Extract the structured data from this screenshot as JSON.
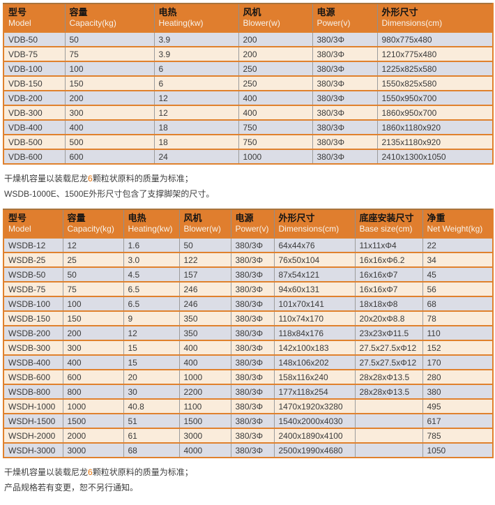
{
  "colors": {
    "header_background": "#e07e2e",
    "header_chinese_text": "#141414",
    "header_english_text": "#f7f3ec",
    "row_gray": "#dbdde6",
    "row_cream": "#faecdb",
    "horizontal_border": "#e0812d",
    "vertical_border": "#9b9b9b",
    "note_highlight": "#e8740a"
  },
  "table1": {
    "columns": [
      {
        "cn": "型号",
        "en": "Model"
      },
      {
        "cn": "容量",
        "en": "Capacity(kg)"
      },
      {
        "cn": "电热",
        "en": "Heating(kw)"
      },
      {
        "cn": "风机",
        "en": "Blower(w)"
      },
      {
        "cn": "电源",
        "en": "Power(v)"
      },
      {
        "cn": "外形尺寸",
        "en": "Dimensions(cm)"
      }
    ],
    "rows": [
      [
        "VDB-50",
        "50",
        "3.9",
        "200",
        "380/3Φ",
        "980x775x480"
      ],
      [
        "VDB-75",
        "75",
        "3.9",
        "200",
        "380/3Φ",
        "1210x775x480"
      ],
      [
        "VDB-100",
        "100",
        "6",
        "250",
        "380/3Φ",
        "1225x825x580"
      ],
      [
        "VDB-150",
        "150",
        "6",
        "250",
        "380/3Φ",
        "1550x825x580"
      ],
      [
        "VDB-200",
        "200",
        "12",
        "400",
        "380/3Φ",
        "1550x950x700"
      ],
      [
        "VDB-300",
        "300",
        "12",
        "400",
        "380/3Φ",
        "1860x950x700"
      ],
      [
        "VDB-400",
        "400",
        "18",
        "750",
        "380/3Φ",
        "1860x1180x920"
      ],
      [
        "VDB-500",
        "500",
        "18",
        "750",
        "380/3Φ",
        "2135x1180x920"
      ],
      [
        "VDB-600",
        "600",
        "24",
        "1000",
        "380/3Φ",
        "2410x1300x1050"
      ]
    ]
  },
  "notes_middle": {
    "line1_prefix": "干燥机容量以装载尼龙",
    "line1_highlight": "6",
    "line1_suffix": "颗粒状原料的质量为标准；",
    "line2": "WSDB-1000E、1500E外形尺寸包含了支撑脚架的尺寸。"
  },
  "table2": {
    "columns": [
      {
        "cn": "型号",
        "en": "Model"
      },
      {
        "cn": "容量",
        "en": "Capacity(kg)"
      },
      {
        "cn": "电热",
        "en": "Heating(kw)"
      },
      {
        "cn": "风机",
        "en": "Blower(w)"
      },
      {
        "cn": "电源",
        "en": "Power(v)"
      },
      {
        "cn": "外形尺寸",
        "en": "Dimensions(cm)"
      },
      {
        "cn": "底座安装尺寸",
        "en": "Base size(cm)"
      },
      {
        "cn": "净重",
        "en": "Net Weight(kg)"
      }
    ],
    "rows": [
      [
        "WSDB-12",
        "12",
        "1.6",
        "50",
        "380/3Φ",
        "64x44x76",
        "11x11xΦ4",
        "22"
      ],
      [
        "WSDB-25",
        "25",
        "3.0",
        "122",
        "380/3Φ",
        "76x50x104",
        "16x16xΦ6.2",
        "34"
      ],
      [
        "WSDB-50",
        "50",
        "4.5",
        "157",
        "380/3Φ",
        "87x54x121",
        "16x16xΦ7",
        "45"
      ],
      [
        "WSDB-75",
        "75",
        "6.5",
        "246",
        "380/3Φ",
        "94x60x131",
        "16x16xΦ7",
        "56"
      ],
      [
        "WSDB-100",
        "100",
        "6.5",
        "246",
        "380/3Φ",
        "101x70x141",
        "18x18xΦ8",
        "68"
      ],
      [
        "WSDB-150",
        "150",
        "9",
        "350",
        "380/3Φ",
        "110x74x170",
        "20x20xΦ8.8",
        "78"
      ],
      [
        "WSDB-200",
        "200",
        "12",
        "350",
        "380/3Φ",
        "118x84x176",
        "23x23xΦ11.5",
        "110"
      ],
      [
        "WSDB-300",
        "300",
        "15",
        "400",
        "380/3Φ",
        "142x100x183",
        "27.5x27.5xΦ12",
        "152"
      ],
      [
        "WSDB-400",
        "400",
        "15",
        "400",
        "380/3Φ",
        "148x106x202",
        "27.5x27.5xΦ12",
        "170"
      ],
      [
        "WSDB-600",
        "600",
        "20",
        "1000",
        "380/3Φ",
        "158x116x240",
        "28x28xΦ13.5",
        "280"
      ],
      [
        "WSDB-800",
        "800",
        "30",
        "2200",
        "380/3Φ",
        "177x118x254",
        "28x28xΦ13.5",
        "380"
      ],
      [
        "WSDH-1000",
        "1000",
        "40.8",
        "1100",
        "380/3Φ",
        "1470x1920x3280",
        "",
        "495"
      ],
      [
        "WSDH-1500",
        "1500",
        "51",
        "1500",
        "380/3Φ",
        "1540x2000x4030",
        "",
        "617"
      ],
      [
        "WSDH-2000",
        "2000",
        "61",
        "3000",
        "380/3Φ",
        "2400x1890x4100",
        "",
        "785"
      ],
      [
        "WSDH-3000",
        "3000",
        "68",
        "4000",
        "380/3Φ",
        "2500x1990x4680",
        "",
        "1050"
      ]
    ]
  },
  "notes_bottom": {
    "line1_prefix": "干燥机容量以装载尼龙",
    "line1_highlight": "6",
    "line1_suffix": "颗粒状原料的质量为标准；",
    "line2": "产品规格若有变更，恕不另行通知。"
  }
}
